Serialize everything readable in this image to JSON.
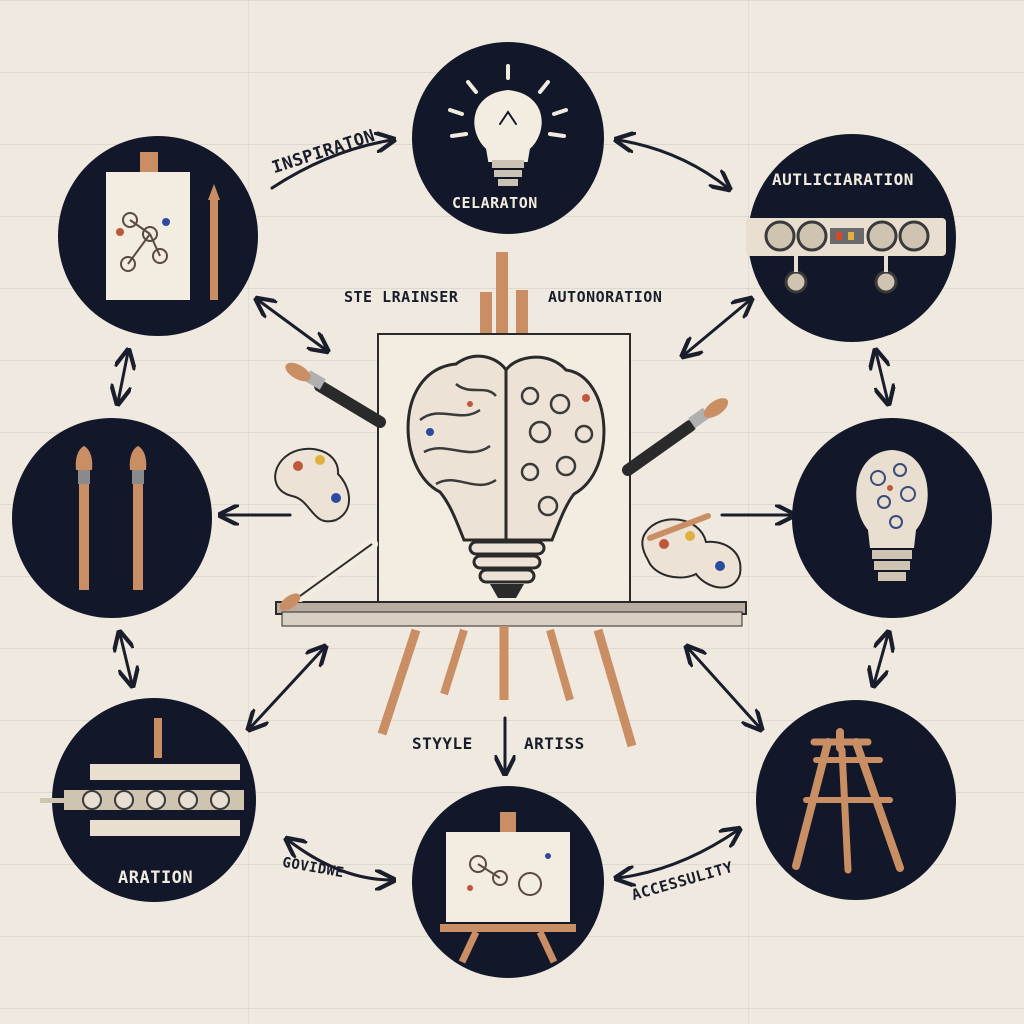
{
  "labels": {
    "inspiration": "INSPIRATON",
    "celaraton": "CELARATON",
    "autliciaration": "AUTLICIARATION",
    "ste_lrainser": "STE LRAINSER",
    "autonoration": "AUTONORATION",
    "style": "STYYLE",
    "artiss": "ARTISS",
    "aration": "ARATION",
    "govidwe": "GOVIDWE",
    "accessulity": "ACCESSULITY"
  },
  "icons": {
    "top_center": "lightbulb-icon",
    "top_left": "sketchbook-icon",
    "top_right": "machine-gears-icon",
    "mid_left": "paintbrushes-icon",
    "mid_right": "patterned-lightbulb-icon",
    "bottom_left": "conveyor-machine-icon",
    "bottom_center": "easel-canvas-icon",
    "bottom_right": "easel-icon",
    "center": "easel-brain-lightbulb-icon"
  },
  "colors": {
    "background": "#efe9df",
    "node_fill": "#121829",
    "accent_wood": "#c98e63",
    "paper": "#f3ece0",
    "ink": "#1a1e2c"
  }
}
